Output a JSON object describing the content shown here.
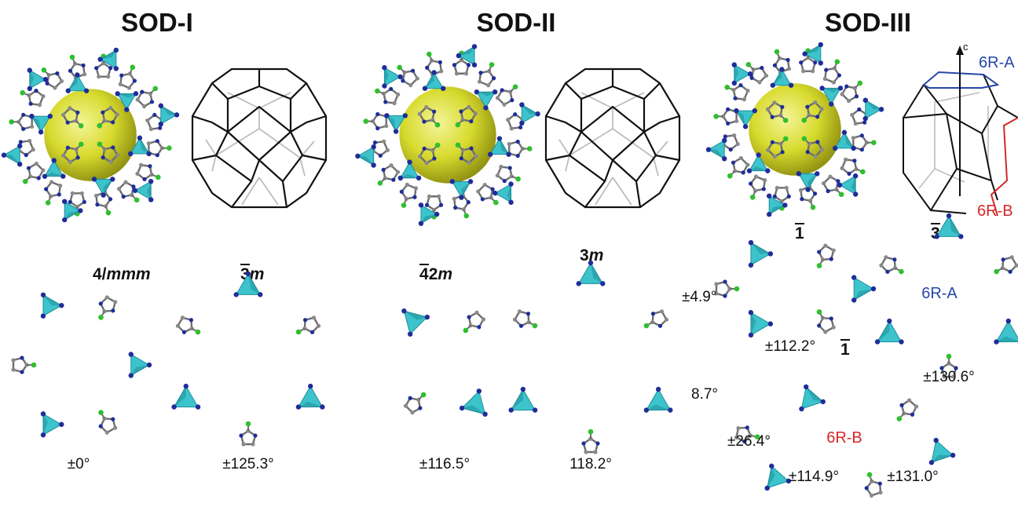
{
  "panels": [
    {
      "title": "SOD-I",
      "rings": [
        {
          "symmetry_main": "4/",
          "symmetry_italic": "mmm",
          "overbar": "",
          "angle": "±0°"
        },
        {
          "symmetry_main": "",
          "symmetry_italic": "m",
          "overbar": "3",
          "angle": "±125.3°"
        }
      ]
    },
    {
      "title": "SOD-II",
      "rings": [
        {
          "symmetry_main": "2",
          "symmetry_italic": "m",
          "overbar": "4",
          "angle": "±116.5°"
        },
        {
          "symmetry_main": "3",
          "symmetry_italic": "m",
          "overbar": "",
          "angle": "118.2°",
          "angle2": "8.7°"
        }
      ]
    },
    {
      "title": "SOD-III",
      "axis_label": "c",
      "ring_labels": {
        "a": "6R-A",
        "b": "6R-B"
      },
      "rings": [
        {
          "overbar": "1",
          "angle_left": "±4.9°",
          "angle": "±112.2°"
        },
        {
          "overbar": "3",
          "label": "6R-A",
          "angle": "±130.6°"
        },
        {
          "overbar": "1",
          "label": "6R-B",
          "angle_left": "±26.4°",
          "angle": "±114.9°",
          "angle2": "±131.0°"
        }
      ]
    }
  ],
  "colors": {
    "tetrahedron": "#3cc3cc",
    "tetrahedron_dark": "#1f8f99",
    "nitrogen": "#1f2d9a",
    "methyl": "#2fbf2f",
    "carbon": "#8a8a8a",
    "cage_sphere": "#d9dc2e",
    "ring_a": "#2747a8",
    "ring_b": "#d42828",
    "edge_front": "#111111",
    "edge_back": "#bdbdbd"
  }
}
